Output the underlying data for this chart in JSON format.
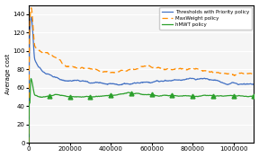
{
  "title": "",
  "ylabel": "Average cost",
  "xlabel": "",
  "xlim": [
    0,
    1100000
  ],
  "ylim": [
    0,
    150
  ],
  "y_ticks": [
    0,
    20,
    40,
    60,
    80,
    100,
    120,
    140
  ],
  "x_ticks": [
    0,
    200000,
    400000,
    600000,
    800000,
    1000000
  ],
  "legend_labels": [
    "Thresholds with Priority policy",
    "MaxWeight policy",
    "hMWT policy"
  ],
  "line_colors": [
    "#4472c4",
    "#ff8c00",
    "#2ca02c"
  ],
  "background_color": "#f5f5f5",
  "grid_color": "#ffffff"
}
